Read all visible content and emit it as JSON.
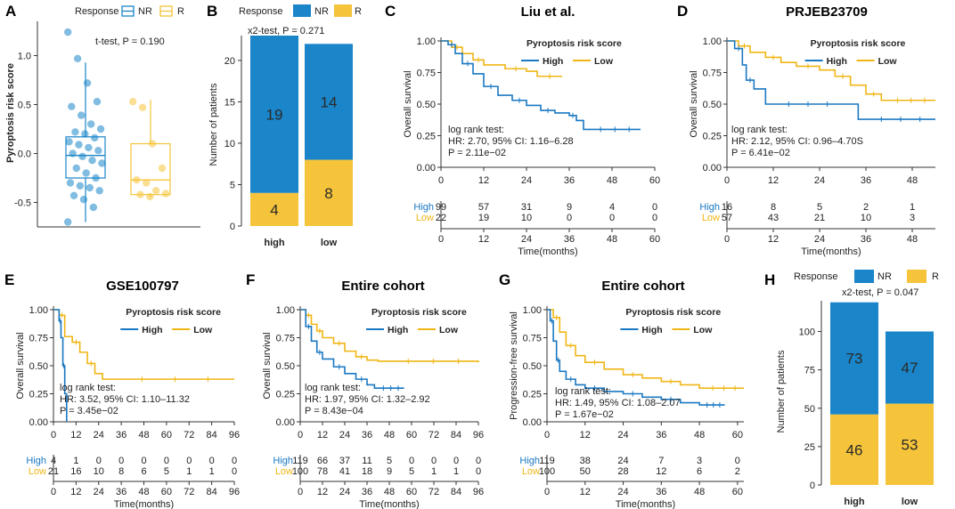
{
  "colors": {
    "nr": "#1a85c8",
    "r": "#f5c43a",
    "high": "#1a78c2",
    "low": "#f0b616",
    "axis": "#333333"
  },
  "panelA": {
    "label": "A",
    "legend_title": "Response",
    "legend_items": [
      "NR",
      "R"
    ],
    "ylabel": "Pyroptosis risk score",
    "stat": "t-test, P = 0.190"
  },
  "panelB": {
    "label": "B",
    "legend_title": "Response",
    "legend_items": [
      "NR",
      "R"
    ],
    "ylabel": "Number of patients",
    "stat": "x2-test, P = 0.271"
  },
  "panelH": {
    "label": "H",
    "legend_title": "Response",
    "legend_items": [
      "NR",
      "R"
    ],
    "ylabel": "Number of patients",
    "stat": "x2-test, P = 0.047"
  },
  "chart_data": [
    {
      "id": "A",
      "type": "box",
      "ylim": [
        -0.75,
        1.35
      ],
      "yticks": [
        "-0.5",
        "0.0",
        "0.5",
        "1.0"
      ],
      "ytick_values": [
        -0.5,
        0,
        0.5,
        1.0
      ],
      "groups": [
        {
          "name": "NR",
          "q1": -0.25,
          "median": -0.02,
          "q3": 0.17,
          "whisker_low": -0.7,
          "whisker_high": 0.93,
          "points": [
            1.24,
            0.97,
            0.72,
            0.53,
            0.48,
            0.39,
            0.3,
            0.25,
            0.22,
            0.2,
            0.16,
            0.12,
            0.09,
            0.06,
            0.03,
            0.0,
            -0.03,
            -0.07,
            -0.1,
            -0.15,
            -0.2,
            -0.25,
            -0.3,
            -0.33,
            -0.35,
            -0.38,
            -0.43,
            -0.47,
            -0.55,
            -0.7
          ]
        },
        {
          "name": "R",
          "q1": -0.42,
          "median": -0.27,
          "q3": 0.1,
          "whisker_low": -0.45,
          "whisker_high": 0.55,
          "points": [
            0.53,
            0.47,
            0.1,
            -0.15,
            -0.27,
            -0.3,
            -0.38,
            -0.41,
            -0.42,
            -0.44
          ]
        }
      ]
    },
    {
      "id": "B",
      "type": "stacked-bar",
      "categories": [
        "high",
        "low"
      ],
      "ylim": [
        0,
        23
      ],
      "yticks": [
        "0",
        "5",
        "10",
        "15",
        "20"
      ],
      "ytick_values": [
        0,
        5,
        10,
        15,
        20
      ],
      "series": [
        {
          "name": "R",
          "values": [
            4,
            8
          ]
        },
        {
          "name": "NR",
          "values": [
            19,
            14
          ]
        }
      ],
      "labels": [
        {
          "series": "NR",
          "values": [
            "19",
            "14"
          ]
        },
        {
          "series": "R",
          "values": [
            "4",
            "8"
          ]
        }
      ]
    },
    {
      "id": "C",
      "type": "km",
      "title": "Liu et al.",
      "label": "C",
      "xmax": 60,
      "xtick_labels": [
        "0",
        "12",
        "24",
        "36",
        "48",
        "60"
      ],
      "xtick_values": [
        0,
        12,
        24,
        36,
        48,
        60
      ],
      "ylabel": "Overall survival",
      "ytick_labels": [
        "0.00",
        "0.25",
        "0.50",
        "0.75",
        "1.00"
      ],
      "xlabel": "Time(months)",
      "legend_title": "Pyroptosis risk score",
      "groups": [
        "High",
        "Low"
      ],
      "curves": {
        "High": [
          [
            0,
            1.0
          ],
          [
            2,
            0.97
          ],
          [
            4,
            0.9
          ],
          [
            6,
            0.82
          ],
          [
            9,
            0.74
          ],
          [
            12,
            0.64
          ],
          [
            16,
            0.57
          ],
          [
            20,
            0.53
          ],
          [
            24,
            0.49
          ],
          [
            28,
            0.45
          ],
          [
            32,
            0.43
          ],
          [
            36,
            0.41
          ],
          [
            38,
            0.37
          ],
          [
            40,
            0.3
          ],
          [
            56,
            0.3
          ]
        ],
        "Low": [
          [
            0,
            1.0
          ],
          [
            3,
            0.95
          ],
          [
            6,
            0.9
          ],
          [
            9,
            0.85
          ],
          [
            12,
            0.81
          ],
          [
            18,
            0.78
          ],
          [
            24,
            0.76
          ],
          [
            27,
            0.72
          ],
          [
            34,
            0.72
          ]
        ]
      },
      "stats": [
        "log rank test:",
        "HR: 2.70, 95% CI: 1.16–6.28",
        "P = 2.11e−02"
      ],
      "risk_table": {
        "High": [
          "99",
          "57",
          "31",
          "9",
          "4",
          "0"
        ],
        "Low": [
          "22",
          "19",
          "10",
          "0",
          "0",
          "0"
        ]
      }
    },
    {
      "id": "D",
      "type": "km",
      "title": "PRJEB23709",
      "label": "D",
      "xmax": 54,
      "xtick_labels": [
        "0",
        "12",
        "24",
        "36",
        "48"
      ],
      "xtick_values": [
        0,
        12,
        24,
        36,
        48
      ],
      "ylabel": "Overall survival",
      "ytick_labels": [
        "0.00",
        "0.25",
        "0.50",
        "0.75",
        "1.00"
      ],
      "xlabel": "Time(months)",
      "legend_title": "Pyroptosis risk score",
      "groups": [
        "High",
        "Low"
      ],
      "curves": {
        "High": [
          [
            0,
            1.0
          ],
          [
            2,
            0.94
          ],
          [
            4,
            0.81
          ],
          [
            5,
            0.69
          ],
          [
            7,
            0.62
          ],
          [
            10,
            0.5
          ],
          [
            30,
            0.5
          ],
          [
            34,
            0.38
          ],
          [
            54,
            0.38
          ]
        ],
        "Low": [
          [
            0,
            1.0
          ],
          [
            3,
            0.96
          ],
          [
            6,
            0.91
          ],
          [
            10,
            0.87
          ],
          [
            14,
            0.83
          ],
          [
            18,
            0.8
          ],
          [
            24,
            0.77
          ],
          [
            28,
            0.72
          ],
          [
            32,
            0.65
          ],
          [
            36,
            0.58
          ],
          [
            40,
            0.53
          ],
          [
            54,
            0.53
          ]
        ]
      },
      "stats": [
        "log rank test:",
        "HR: 2.12, 95% CI: 0.96–4.70S",
        "P = 6.41e−02"
      ],
      "risk_table": {
        "High": [
          "16",
          "8",
          "5",
          "2",
          "1"
        ],
        "Low": [
          "57",
          "43",
          "21",
          "10",
          "3"
        ]
      }
    },
    {
      "id": "E",
      "type": "km",
      "title": "GSE100797",
      "label": "E",
      "xmax": 96,
      "xtick_labels": [
        "0",
        "12",
        "24",
        "36",
        "48",
        "60",
        "72",
        "84",
        "96"
      ],
      "xtick_values": [
        0,
        12,
        24,
        36,
        48,
        60,
        72,
        84,
        96
      ],
      "ylabel": "Overall survival",
      "ytick_labels": [
        "0.00",
        "0.25",
        "0.50",
        "0.75",
        "1.00"
      ],
      "xlabel": "Time(months)",
      "legend_title": "Pyroptosis risk score",
      "groups": [
        "High",
        "Low"
      ],
      "curves": {
        "High": [
          [
            0,
            1.0
          ],
          [
            3,
            0.9
          ],
          [
            4,
            0.75
          ],
          [
            5,
            0.5
          ],
          [
            6,
            0.25
          ],
          [
            7,
            0.0
          ]
        ],
        "Low": [
          [
            0,
            1.0
          ],
          [
            3,
            0.95
          ],
          [
            6,
            0.76
          ],
          [
            10,
            0.71
          ],
          [
            14,
            0.62
          ],
          [
            18,
            0.52
          ],
          [
            22,
            0.43
          ],
          [
            26,
            0.38
          ],
          [
            96,
            0.38
          ]
        ]
      },
      "stats": [
        "log rank test:",
        "HR: 3.52, 95% CI: 1.10–11.32",
        "P = 3.45e−02"
      ],
      "risk_table": {
        "High": [
          "4",
          "1",
          "0",
          "0",
          "0",
          "0",
          "0",
          "0",
          "0"
        ],
        "Low": [
          "21",
          "16",
          "10",
          "8",
          "6",
          "5",
          "1",
          "1",
          "0"
        ]
      }
    },
    {
      "id": "F",
      "type": "km",
      "title": "Entire cohort",
      "label": "F",
      "xmax": 96,
      "xtick_labels": [
        "0",
        "12",
        "24",
        "36",
        "48",
        "60",
        "72",
        "84",
        "96"
      ],
      "xtick_values": [
        0,
        12,
        24,
        36,
        48,
        60,
        72,
        84,
        96
      ],
      "ylabel": "Overall survival",
      "ytick_labels": [
        "0.00",
        "0.25",
        "0.50",
        "0.75",
        "1.00"
      ],
      "xlabel": "Time(months)",
      "legend_title": "Pyroptosis risk score",
      "groups": [
        "High",
        "Low"
      ],
      "curves": {
        "High": [
          [
            0,
            1.0
          ],
          [
            3,
            0.85
          ],
          [
            6,
            0.72
          ],
          [
            9,
            0.62
          ],
          [
            12,
            0.56
          ],
          [
            18,
            0.49
          ],
          [
            24,
            0.43
          ],
          [
            30,
            0.38
          ],
          [
            36,
            0.33
          ],
          [
            40,
            0.3
          ],
          [
            56,
            0.3
          ]
        ],
        "Low": [
          [
            0,
            1.0
          ],
          [
            3,
            0.95
          ],
          [
            6,
            0.87
          ],
          [
            9,
            0.81
          ],
          [
            12,
            0.75
          ],
          [
            18,
            0.7
          ],
          [
            24,
            0.63
          ],
          [
            30,
            0.58
          ],
          [
            36,
            0.55
          ],
          [
            42,
            0.54
          ],
          [
            96,
            0.53
          ]
        ]
      },
      "stats": [
        "log rank test:",
        "HR: 1.97, 95% CI: 1.32–2.92",
        "P = 8.43e−04"
      ],
      "risk_table": {
        "High": [
          "119",
          "66",
          "37",
          "11",
          "5",
          "0",
          "0",
          "0",
          "0"
        ],
        "Low": [
          "100",
          "78",
          "41",
          "18",
          "9",
          "5",
          "1",
          "1",
          "0"
        ]
      }
    },
    {
      "id": "G",
      "type": "km",
      "title": "Entire cohort",
      "label": "G",
      "xmax": 62,
      "xtick_labels": [
        "0",
        "12",
        "24",
        "36",
        "48",
        "60"
      ],
      "xtick_values": [
        0,
        12,
        24,
        36,
        48,
        60
      ],
      "ylabel": "Progression-free survival",
      "ytick_labels": [
        "0.00",
        "0.25",
        "0.50",
        "0.75",
        "1.00"
      ],
      "xlabel": "Time(months)",
      "legend_title": "Pyroptosis risk score",
      "groups": [
        "High",
        "Low"
      ],
      "curves": {
        "High": [
          [
            0,
            1.0
          ],
          [
            1,
            0.9
          ],
          [
            2,
            0.72
          ],
          [
            3,
            0.55
          ],
          [
            4,
            0.45
          ],
          [
            6,
            0.38
          ],
          [
            9,
            0.33
          ],
          [
            12,
            0.3
          ],
          [
            18,
            0.27
          ],
          [
            24,
            0.25
          ],
          [
            30,
            0.22
          ],
          [
            36,
            0.2
          ],
          [
            42,
            0.17
          ],
          [
            48,
            0.15
          ],
          [
            56,
            0.15
          ]
        ],
        "Low": [
          [
            0,
            1.0
          ],
          [
            2,
            0.93
          ],
          [
            4,
            0.8
          ],
          [
            6,
            0.68
          ],
          [
            9,
            0.59
          ],
          [
            12,
            0.53
          ],
          [
            18,
            0.47
          ],
          [
            24,
            0.42
          ],
          [
            30,
            0.39
          ],
          [
            36,
            0.36
          ],
          [
            42,
            0.33
          ],
          [
            48,
            0.3
          ],
          [
            62,
            0.3
          ]
        ]
      },
      "stats": [
        "log rank test:",
        "HR: 1.49, 95% CI: 1.08–2.07",
        "P = 1.67e−02"
      ],
      "risk_table": {
        "High": [
          "119",
          "38",
          "24",
          "7",
          "3",
          "0"
        ],
        "Low": [
          "100",
          "50",
          "28",
          "12",
          "6",
          "2"
        ]
      }
    },
    {
      "id": "H",
      "type": "stacked-bar",
      "categories": [
        "high",
        "low"
      ],
      "ylim": [
        0,
        120
      ],
      "yticks": [
        "0",
        "25",
        "50",
        "75",
        "100"
      ],
      "ytick_values": [
        0,
        25,
        50,
        75,
        100
      ],
      "series": [
        {
          "name": "R",
          "values": [
            46,
            53
          ]
        },
        {
          "name": "NR",
          "values": [
            73,
            47
          ]
        }
      ],
      "labels": [
        {
          "series": "NR",
          "values": [
            "73",
            "47"
          ]
        },
        {
          "series": "R",
          "values": [
            "46",
            "53"
          ]
        }
      ]
    }
  ]
}
